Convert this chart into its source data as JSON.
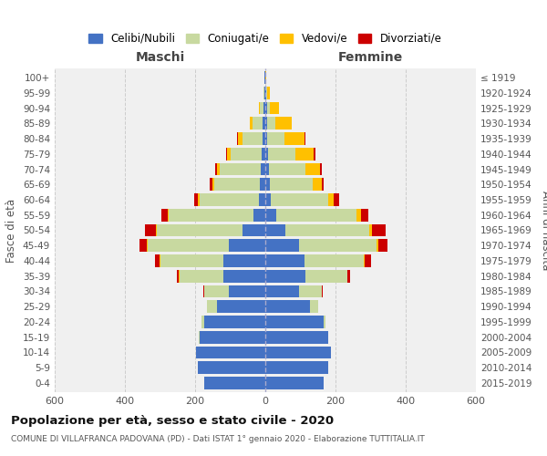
{
  "age_groups": [
    "0-4",
    "5-9",
    "10-14",
    "15-19",
    "20-24",
    "25-29",
    "30-34",
    "35-39",
    "40-44",
    "45-49",
    "50-54",
    "55-59",
    "60-64",
    "65-69",
    "70-74",
    "75-79",
    "80-84",
    "85-89",
    "90-94",
    "95-99",
    "100+"
  ],
  "birth_years": [
    "2015-2019",
    "2010-2014",
    "2005-2009",
    "2000-2004",
    "1995-1999",
    "1990-1994",
    "1985-1989",
    "1980-1984",
    "1975-1979",
    "1970-1974",
    "1965-1969",
    "1960-1964",
    "1955-1959",
    "1950-1954",
    "1945-1949",
    "1940-1944",
    "1935-1939",
    "1930-1934",
    "1925-1929",
    "1920-1924",
    "≤ 1919"
  ],
  "males": {
    "celibi": [
      175,
      192,
      198,
      188,
      175,
      138,
      105,
      120,
      120,
      105,
      65,
      35,
      18,
      15,
      12,
      10,
      8,
      8,
      5,
      3,
      2
    ],
    "coniugati": [
      0,
      0,
      0,
      2,
      8,
      28,
      70,
      125,
      180,
      230,
      245,
      240,
      170,
      130,
      118,
      88,
      58,
      28,
      10,
      2,
      0
    ],
    "vedovi": [
      0,
      0,
      0,
      0,
      0,
      0,
      0,
      1,
      1,
      2,
      2,
      3,
      5,
      5,
      8,
      10,
      12,
      8,
      3,
      1,
      0
    ],
    "divorziati": [
      0,
      0,
      0,
      0,
      0,
      1,
      2,
      5,
      12,
      22,
      32,
      18,
      10,
      8,
      5,
      3,
      2,
      0,
      0,
      0,
      0
    ]
  },
  "females": {
    "nubili": [
      165,
      178,
      188,
      178,
      165,
      128,
      95,
      115,
      112,
      95,
      58,
      32,
      16,
      12,
      10,
      8,
      6,
      6,
      4,
      2,
      1
    ],
    "coniugate": [
      0,
      0,
      0,
      2,
      6,
      22,
      65,
      118,
      168,
      222,
      238,
      228,
      162,
      122,
      105,
      78,
      48,
      22,
      10,
      2,
      0
    ],
    "vedove": [
      0,
      0,
      0,
      0,
      0,
      0,
      1,
      1,
      2,
      4,
      8,
      12,
      18,
      28,
      42,
      52,
      58,
      48,
      25,
      8,
      2
    ],
    "divorziate": [
      0,
      0,
      0,
      0,
      0,
      1,
      2,
      8,
      18,
      28,
      38,
      22,
      15,
      5,
      4,
      4,
      2,
      0,
      0,
      0,
      0
    ]
  },
  "colors": {
    "celibi": "#4472c4",
    "coniugati": "#c8d9a0",
    "vedovi": "#ffc000",
    "divorziati": "#cc0000"
  },
  "title": "Popolazione per età, sesso e stato civile - 2020",
  "subtitle": "COMUNE DI VILLAFRANCA PADOVANA (PD) - Dati ISTAT 1° gennaio 2020 - Elaborazione TUTTITALIA.IT",
  "ylabel_left": "Fasce di età",
  "ylabel_right": "Anni di nascita",
  "xlabel_left": "Maschi",
  "xlabel_right": "Femmine",
  "xlim": 600,
  "bg_color": "#ffffff",
  "plot_bg": "#f0f0f0",
  "grid_color": "#cccccc",
  "legend_labels": [
    "Celibi/Nubili",
    "Coniugati/e",
    "Vedovi/e",
    "Divorziati/e"
  ]
}
